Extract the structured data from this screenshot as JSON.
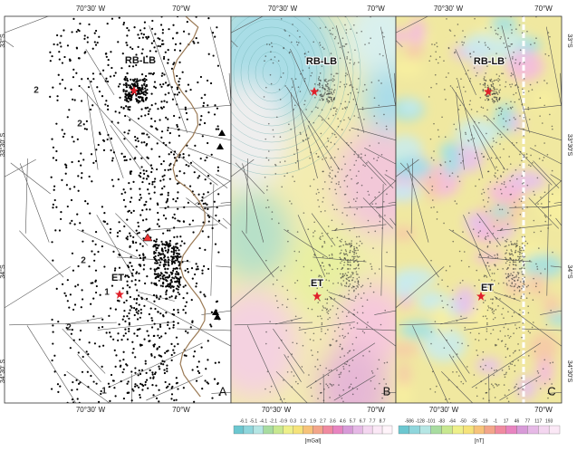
{
  "panels": [
    {
      "label": "A",
      "top_axis": [
        "70°30' W",
        "70°W"
      ],
      "bottom_axis": [
        "70°30' W",
        "70°W"
      ],
      "places": [
        "RB-LB",
        "ET"
      ],
      "numbers": [
        "2",
        "2",
        "2",
        "1",
        "2",
        "1"
      ]
    },
    {
      "label": "B",
      "top_axis": [
        "70°30' W",
        "70°W"
      ],
      "bottom_axis": [
        "70°30' W",
        "70°W"
      ],
      "places": [
        "RB-LB",
        "ET"
      ]
    },
    {
      "label": "C",
      "top_axis": [
        "70°30' W",
        "70°W"
      ],
      "bottom_axis": [
        "70°30' W",
        "70°W"
      ],
      "places": [
        "RB-LB",
        "ET"
      ]
    }
  ],
  "left_axis": [
    "33°S",
    "33°30' S",
    "34°S",
    "34°30' S"
  ],
  "right_axis": [
    "33°S",
    "33°30'S",
    "34°S",
    "34°30'S"
  ],
  "gravity_scale": {
    "ticks": [
      "-6.1",
      "-5.1",
      "-4.1",
      "-2.1",
      "-0.9",
      "0.3",
      "1.2",
      "1.9",
      "2.7",
      "3.6",
      "4.6",
      "5.7",
      "6.7",
      "7.7",
      "8.7"
    ],
    "unit": "[mGal]"
  },
  "magnetic_scale": {
    "ticks": [
      "-586",
      "-128",
      "-101",
      "-83",
      "-64",
      "-50",
      "-35",
      "-19",
      "-1",
      "17",
      "46",
      "77",
      "117",
      "193"
    ],
    "unit": "[nT]"
  }
}
